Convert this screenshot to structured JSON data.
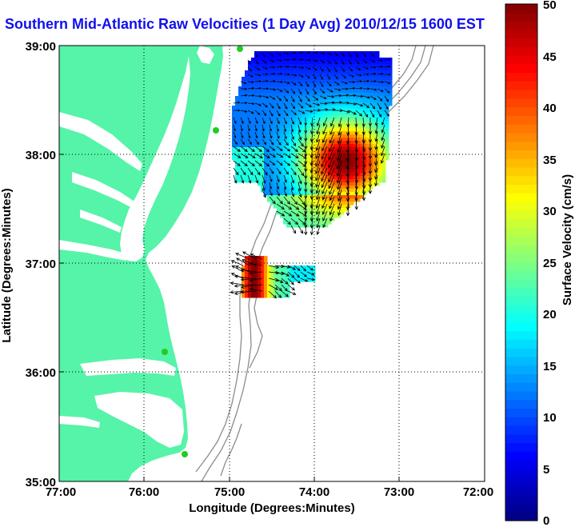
{
  "title": "Southern Mid-Atlantic Raw Velocities (1 Day Avg) 2010/12/15 1600 EST",
  "x_axis": {
    "label": "Longitude (Degrees:Minutes)",
    "ticks": [
      "77:00",
      "76:00",
      "75:00",
      "74:00",
      "73:00",
      "72:00"
    ]
  },
  "y_axis": {
    "label": "Latitude (Degrees:Minutes)",
    "ticks": [
      "39:00",
      "38:00",
      "37:00",
      "36:00",
      "35:00"
    ]
  },
  "colorbar": {
    "label": "Surface Velocity (cm/s)",
    "ticks": [
      "50",
      "45",
      "40",
      "35",
      "30",
      "25",
      "20",
      "15",
      "10",
      "5",
      "0"
    ],
    "range": [
      0,
      50
    ],
    "colormap": "jet"
  },
  "colors": {
    "title": "#1010ee",
    "land": "#55f4a8",
    "ocean": "#ffffff",
    "bathymetry": "#8c8c8c",
    "vectors": "#000000",
    "stations": "#22cc22"
  },
  "map": {
    "lon_range": [
      -77,
      -72
    ],
    "lat_range": [
      35,
      39
    ],
    "grid": true,
    "grid_style": "dotted"
  }
}
